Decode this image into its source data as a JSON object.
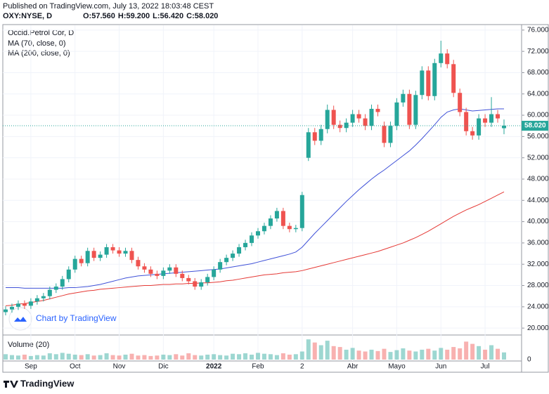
{
  "header": {
    "published": "Published on TradingView.com, July 13, 2022 18:03:48 CEST",
    "symbol": "OXY:NYSE, D",
    "ohlc": [
      "O:57.560",
      "H:59.200",
      "L:56.420",
      "C:58.020"
    ]
  },
  "watermark": "Chart by TradingView",
  "footer": {
    "brand": "TradingView"
  },
  "chart_data": {
    "type": "candlestick",
    "title": "Occid.Petrol Cor, D",
    "up_color": "#26a69a",
    "down_color": "#ef5350",
    "categories": [
      null,
      null,
      null,
      null,
      "Sep",
      null,
      null,
      null,
      null,
      null,
      null,
      "Oct",
      null,
      null,
      null,
      null,
      null,
      null,
      "Nov",
      null,
      null,
      null,
      null,
      null,
      null,
      "Dic",
      null,
      null,
      null,
      null,
      null,
      null,
      null,
      "2022",
      null,
      null,
      null,
      null,
      null,
      null,
      "Feb",
      null,
      null,
      null,
      null,
      null,
      null,
      "2",
      null,
      null,
      null,
      null,
      null,
      null,
      null,
      "Abr",
      null,
      null,
      null,
      null,
      null,
      null,
      "Mayo",
      null,
      null,
      null,
      null,
      null,
      null,
      "Jun",
      null,
      null,
      null,
      null,
      null,
      null,
      "Jul",
      null,
      null,
      null
    ],
    "open": [
      23.0,
      23.5,
      24.0,
      24.6,
      24.2,
      25.0,
      25.6,
      26.0,
      27.2,
      27.8,
      29.2,
      31.0,
      33.0,
      32.2,
      34.5,
      33.2,
      33.8,
      35.2,
      34.6,
      34.0,
      34.5,
      32.8,
      31.6,
      31.0,
      30.2,
      29.8,
      30.8,
      31.4,
      30.2,
      29.4,
      28.8,
      27.8,
      28.6,
      29.6,
      31.0,
      32.4,
      33.2,
      34.0,
      35.2,
      36.0,
      37.4,
      38.2,
      39.2,
      40.6,
      42.0,
      39.2,
      38.6,
      38.8,
      52.0,
      56.8,
      55.2,
      57.4,
      61.0,
      58.2,
      57.6,
      58.6,
      60.2,
      59.4,
      58.0,
      61.2,
      58.0,
      54.8,
      58.0,
      62.4,
      64.0,
      58.2,
      63.8,
      68.4,
      63.6,
      69.8,
      71.6,
      69.6,
      64.2,
      60.6,
      57.0,
      56.2,
      59.4,
      58.6,
      60.2,
      57.56
    ],
    "high": [
      24.1,
      24.6,
      25.2,
      25.2,
      25.6,
      26.2,
      26.6,
      27.8,
      28.4,
      29.8,
      31.6,
      33.6,
      33.6,
      35.1,
      35.1,
      34.4,
      35.8,
      35.8,
      35.2,
      35.1,
      35.1,
      33.4,
      32.2,
      31.6,
      30.8,
      31.4,
      32.0,
      32.0,
      30.8,
      30.0,
      29.4,
      29.2,
      30.2,
      31.6,
      33.0,
      33.8,
      34.6,
      35.8,
      36.6,
      38.0,
      38.8,
      39.8,
      41.2,
      42.6,
      42.6,
      39.8,
      39.4,
      45.6,
      57.6,
      57.6,
      58.2,
      62.0,
      61.8,
      59.0,
      59.4,
      61.0,
      61.0,
      60.2,
      62.0,
      62.0,
      58.8,
      58.8,
      63.2,
      64.8,
      64.8,
      64.6,
      69.2,
      69.2,
      70.6,
      74.0,
      72.4,
      70.4,
      65.0,
      61.4,
      57.8,
      60.2,
      60.2,
      63.4,
      61.0,
      59.2
    ],
    "low": [
      22.4,
      22.9,
      23.4,
      23.6,
      23.6,
      24.4,
      25.0,
      25.4,
      26.6,
      27.2,
      28.6,
      30.4,
      31.6,
      31.6,
      32.6,
      32.6,
      33.2,
      34.0,
      33.4,
      33.4,
      32.2,
      31.0,
      30.4,
      29.6,
      29.2,
      29.2,
      30.2,
      29.6,
      28.8,
      28.2,
      27.2,
      27.2,
      28.0,
      29.0,
      30.4,
      31.8,
      32.6,
      33.4,
      34.6,
      35.4,
      36.8,
      37.6,
      38.6,
      40.0,
      38.6,
      38.0,
      38.0,
      38.2,
      51.4,
      54.4,
      54.4,
      56.6,
      57.4,
      56.8,
      56.8,
      57.8,
      58.6,
      57.2,
      57.2,
      59.8,
      54.0,
      54.0,
      57.2,
      61.6,
      57.4,
      57.4,
      63.0,
      62.8,
      62.8,
      69.0,
      68.8,
      63.4,
      59.8,
      56.2,
      55.4,
      55.4,
      57.8,
      57.8,
      58.6,
      56.42
    ],
    "close": [
      23.5,
      24.0,
      24.6,
      24.2,
      25.0,
      25.6,
      26.0,
      27.2,
      27.8,
      29.2,
      31.0,
      33.0,
      32.2,
      34.5,
      33.2,
      33.8,
      35.2,
      34.6,
      34.0,
      34.5,
      32.8,
      31.6,
      31.0,
      30.2,
      29.8,
      30.8,
      31.4,
      30.2,
      29.4,
      28.8,
      27.8,
      28.6,
      29.6,
      31.0,
      32.4,
      33.2,
      34.0,
      35.2,
      36.0,
      37.4,
      38.2,
      39.2,
      40.6,
      42.0,
      39.2,
      38.6,
      38.8,
      45.0,
      56.8,
      55.2,
      57.4,
      61.0,
      58.2,
      57.6,
      58.6,
      60.2,
      59.4,
      58.0,
      61.2,
      60.6,
      54.8,
      58.0,
      62.4,
      64.0,
      58.2,
      63.8,
      68.4,
      63.6,
      69.8,
      71.6,
      69.6,
      64.2,
      60.6,
      57.0,
      56.2,
      59.4,
      58.6,
      60.2,
      59.4,
      58.02
    ],
    "series": [
      {
        "name": "MA (70, close, 0)",
        "color": "#3f51d8",
        "values": [
          27.6,
          27.6,
          27.6,
          27.5,
          27.5,
          27.5,
          27.5,
          27.5,
          27.5,
          27.5,
          27.6,
          27.6,
          27.7,
          27.8,
          28.0,
          28.2,
          28.5,
          28.8,
          29.1,
          29.4,
          29.6,
          29.8,
          29.9,
          30.0,
          30.1,
          30.2,
          30.3,
          30.4,
          30.5,
          30.6,
          30.7,
          30.8,
          30.9,
          31.0,
          31.1,
          31.3,
          31.5,
          31.7,
          31.9,
          32.1,
          32.4,
          32.7,
          33.0,
          33.3,
          33.6,
          33.9,
          34.3,
          35.2,
          36.5,
          37.8,
          39.0,
          40.2,
          41.4,
          42.6,
          43.8,
          44.9,
          46.0,
          47.0,
          48.0,
          48.9,
          49.7,
          50.6,
          51.5,
          52.4,
          53.3,
          54.4,
          55.6,
          56.9,
          58.2,
          59.6,
          60.6,
          61.0,
          61.2,
          61.0,
          60.8,
          60.9,
          61.0,
          61.1,
          61.2,
          61.2
        ]
      },
      {
        "name": "MA (200, close, 0)",
        "color": "#e53935",
        "values": [
          24.2,
          24.3,
          24.5,
          24.6,
          24.8,
          25.0,
          25.2,
          25.5,
          25.8,
          26.1,
          26.4,
          26.6,
          26.8,
          27.0,
          27.1,
          27.3,
          27.4,
          27.5,
          27.6,
          27.7,
          27.8,
          27.9,
          28.0,
          28.0,
          28.1,
          28.2,
          28.2,
          28.3,
          28.3,
          28.4,
          28.4,
          28.5,
          28.5,
          28.6,
          28.7,
          28.9,
          29.0,
          29.2,
          29.4,
          29.6,
          29.8,
          30.0,
          30.1,
          30.2,
          30.4,
          30.5,
          30.6,
          30.8,
          31.1,
          31.4,
          31.7,
          32.0,
          32.3,
          32.6,
          32.9,
          33.2,
          33.5,
          33.8,
          34.1,
          34.4,
          34.8,
          35.2,
          35.6,
          36.0,
          36.5,
          37.0,
          37.6,
          38.2,
          38.9,
          39.6,
          40.3,
          41.0,
          41.6,
          42.2,
          42.7,
          43.2,
          43.8,
          44.4,
          45.0,
          45.6
        ]
      }
    ],
    "volume": {
      "name": "Volume (20)",
      "ylim": [
        0,
        50
      ],
      "yticks": [
        0
      ],
      "values": [
        12,
        10,
        9,
        11,
        8,
        10,
        9,
        14,
        12,
        15,
        13,
        11,
        10,
        12,
        9,
        10,
        14,
        10,
        9,
        11,
        13,
        9,
        10,
        8,
        9,
        11,
        10,
        12,
        9,
        14,
        10,
        9,
        11,
        12,
        10,
        9,
        13,
        12,
        14,
        11,
        15,
        13,
        12,
        10,
        14,
        11,
        12,
        18,
        45,
        38,
        32,
        42,
        30,
        28,
        22,
        26,
        20,
        18,
        22,
        19,
        24,
        17,
        21,
        25,
        20,
        18,
        22,
        24,
        20,
        26,
        22,
        28,
        25,
        40,
        35,
        30,
        22,
        32,
        24,
        16
      ]
    },
    "last_price_label": "58.020",
    "ylim": [
      18.7,
      76.9
    ],
    "yticks": [
      {
        "value": 20,
        "label": "20.000"
      },
      {
        "value": 24,
        "label": "24.000"
      },
      {
        "value": 28,
        "label": "28.000"
      },
      {
        "value": 32,
        "label": "32.000"
      },
      {
        "value": 36,
        "label": "36.000"
      },
      {
        "value": 40,
        "label": "40.000"
      },
      {
        "value": 44,
        "label": "44.000"
      },
      {
        "value": 48,
        "label": "48.000"
      },
      {
        "value": 52,
        "label": "52.000"
      },
      {
        "value": 56,
        "label": "56.000"
      },
      {
        "value": 60,
        "label": "60.000"
      },
      {
        "value": 64,
        "label": "64.000"
      },
      {
        "value": 68,
        "label": "68.000"
      },
      {
        "value": 72,
        "label": "72.000"
      },
      {
        "value": 76,
        "label": "76.000"
      }
    ],
    "grid": true
  }
}
